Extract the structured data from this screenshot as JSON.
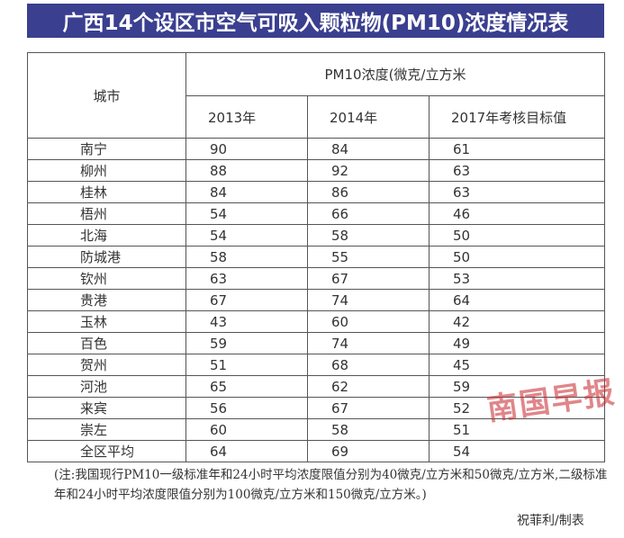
{
  "title": "广西14个设区市空气可吸入颗粒物(PM10)浓度情况表",
  "header": {
    "city": "城市",
    "group": "PM10浓度(微克/立方米",
    "years": [
      "2013年",
      "2014年",
      "2017年考核目标值"
    ]
  },
  "rows": [
    {
      "city": "南宁",
      "v2013": "90",
      "v2014": "84",
      "target": "61"
    },
    {
      "city": "柳州",
      "v2013": "88",
      "v2014": "92",
      "target": "63"
    },
    {
      "city": "桂林",
      "v2013": "84",
      "v2014": "86",
      "target": "63"
    },
    {
      "city": "梧州",
      "v2013": "54",
      "v2014": "66",
      "target": "46"
    },
    {
      "city": "北海",
      "v2013": "54",
      "v2014": "58",
      "target": "50"
    },
    {
      "city": "防城港",
      "v2013": "58",
      "v2014": "55",
      "target": "50"
    },
    {
      "city": "钦州",
      "v2013": "63",
      "v2014": "67",
      "target": "53"
    },
    {
      "city": "贵港",
      "v2013": "67",
      "v2014": "74",
      "target": "64"
    },
    {
      "city": "玉林",
      "v2013": "43",
      "v2014": "60",
      "target": "42"
    },
    {
      "city": "百色",
      "v2013": "59",
      "v2014": "74",
      "target": "49"
    },
    {
      "city": "贺州",
      "v2013": "51",
      "v2014": "68",
      "target": "45"
    },
    {
      "city": "河池",
      "v2013": "65",
      "v2014": "62",
      "target": "59"
    },
    {
      "city": "来宾",
      "v2013": "56",
      "v2014": "67",
      "target": "52"
    },
    {
      "city": "崇左",
      "v2013": "60",
      "v2014": "58",
      "target": "51"
    },
    {
      "city": "全区平均",
      "v2013": "64",
      "v2014": "69",
      "target": "54"
    }
  ],
  "note": "(注:我国现行PM10一级标准年和24小时平均浓度限值分别为40微克/立方米和50微克/立方米,二级标准年和24小时平均浓度限值分别为100微克/立方米和150微克/立方米。)",
  "credit": "祝菲利/制表",
  "watermark": "南国早报",
  "colors": {
    "title_bg": "#3a3f8f",
    "title_text": "#ffffff",
    "watermark": "#c8242b"
  }
}
